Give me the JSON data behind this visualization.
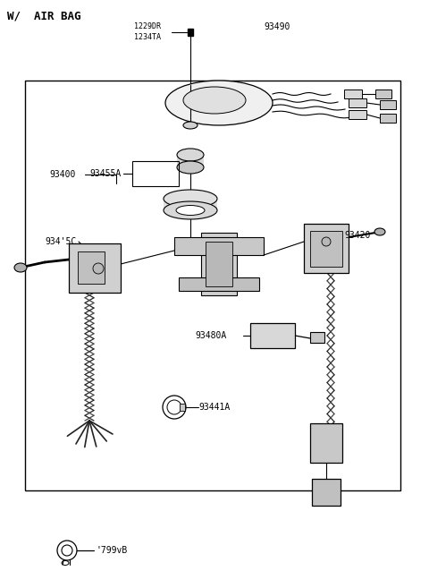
{
  "bg_color": "#ffffff",
  "line_color": "#000000",
  "labels": {
    "w_air_bag": "W/  AIR BAG",
    "part_1229DR": "1229DR",
    "part_1234TA": "1234TA",
    "part_93490": "93490",
    "part_93400": "93400",
    "part_93455A": "93455A",
    "part_934_5C": "934'5C",
    "part_93420": "93420",
    "part_93480A": "93480A",
    "part_93441A": "93441A",
    "part_799vB": "'799vB"
  }
}
